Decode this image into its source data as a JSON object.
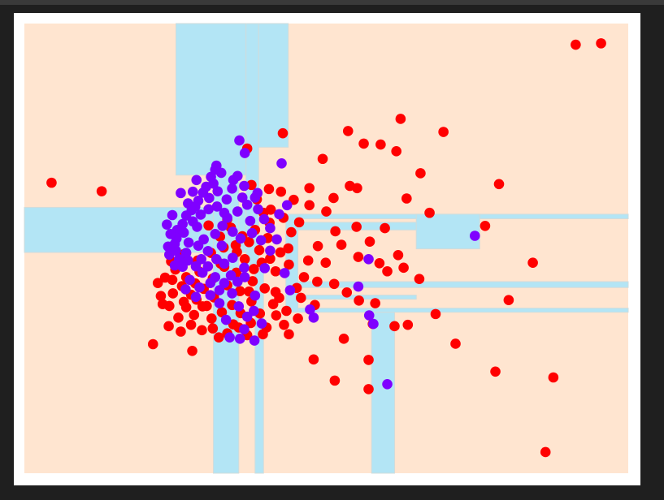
{
  "chart_data": {
    "type": "scatter",
    "title": "",
    "xlabel": "",
    "ylabel": "",
    "axes_visible": false,
    "xlim": [
      0,
      100
    ],
    "ylim": [
      0,
      100
    ],
    "grid": false,
    "legend": "none",
    "decision_regions": {
      "background_class_color": "#ffe5d0",
      "other_class_color": "#b3e5f5",
      "boundary_color": "#cfdcdc",
      "regions": [
        {
          "x": [
            25.1,
            36.7
          ],
          "y": [
            66.3,
            100
          ]
        },
        {
          "x": [
            0,
            36.7
          ],
          "y": [
            49.1,
            59.1
          ]
        },
        {
          "x": [
            31.3,
            35.5
          ],
          "y": [
            0,
            66.3
          ]
        },
        {
          "x": [
            36.7,
            38.8
          ],
          "y": [
            45.0,
            100
          ]
        },
        {
          "x": [
            38.8,
            43.7
          ],
          "y": [
            72.5,
            100
          ]
        },
        {
          "x": [
            45.3,
            100
          ],
          "y": [
            56.6,
            57.6
          ]
        },
        {
          "x": [
            45.3,
            64.9
          ],
          "y": [
            54.1,
            55.8
          ]
        },
        {
          "x": [
            64.9,
            75.4
          ],
          "y": [
            49.9,
            57.6
          ]
        },
        {
          "x": [
            45.3,
            100
          ],
          "y": [
            41.3,
            42.6
          ]
        },
        {
          "x": [
            45.3,
            64.9
          ],
          "y": [
            38.7,
            39.6
          ]
        },
        {
          "x": [
            45.3,
            100
          ],
          "y": [
            35.8,
            36.7
          ]
        },
        {
          "x": [
            43.3,
            45.3
          ],
          "y": [
            35.8,
            57.6
          ]
        },
        {
          "x": [
            57.5,
            61.3
          ],
          "y": [
            0,
            35.8
          ]
        },
        {
          "x": [
            38.2,
            39.6
          ],
          "y": [
            0,
            45.0
          ]
        }
      ]
    },
    "series": [
      {
        "color": "#ff0000",
        "points": [
          [
            91.3,
            95.3
          ],
          [
            95.5,
            95.6
          ],
          [
            62.3,
            78.8
          ],
          [
            53.6,
            76.1
          ],
          [
            69.4,
            75.9
          ],
          [
            42.8,
            75.6
          ],
          [
            56.2,
            73.3
          ],
          [
            59.0,
            73.1
          ],
          [
            61.6,
            71.6
          ],
          [
            36.9,
            72.2
          ],
          [
            49.4,
            69.9
          ],
          [
            65.6,
            66.7
          ],
          [
            78.6,
            64.3
          ],
          [
            4.5,
            64.6
          ],
          [
            12.8,
            62.7
          ],
          [
            47.2,
            63.4
          ],
          [
            51.2,
            61.2
          ],
          [
            53.9,
            63.9
          ],
          [
            55.1,
            63.4
          ],
          [
            63.3,
            61.1
          ],
          [
            67.1,
            57.9
          ],
          [
            76.3,
            55.0
          ],
          [
            84.2,
            46.8
          ],
          [
            80.2,
            38.5
          ],
          [
            68.1,
            35.4
          ],
          [
            71.4,
            28.8
          ],
          [
            63.5,
            33.0
          ],
          [
            61.3,
            32.7
          ],
          [
            57.7,
            33.2
          ],
          [
            52.9,
            29.9
          ],
          [
            47.9,
            25.3
          ],
          [
            57.0,
            25.2
          ],
          [
            78.0,
            22.6
          ],
          [
            51.4,
            20.6
          ],
          [
            57.0,
            18.7
          ],
          [
            87.6,
            21.3
          ],
          [
            21.3,
            28.7
          ],
          [
            86.3,
            4.7
          ],
          [
            22.1,
            42.3
          ],
          [
            61.9,
            48.5
          ],
          [
            55.3,
            48.1
          ],
          [
            58.8,
            46.7
          ],
          [
            49.9,
            46.8
          ],
          [
            52.5,
            50.8
          ],
          [
            57.2,
            51.5
          ],
          [
            59.7,
            54.5
          ],
          [
            55.0,
            54.8
          ],
          [
            51.5,
            53.8
          ],
          [
            48.6,
            50.5
          ],
          [
            60.1,
            44.9
          ],
          [
            62.8,
            45.7
          ],
          [
            65.4,
            43.2
          ],
          [
            47.0,
            47.3
          ],
          [
            43.7,
            50.0
          ],
          [
            45.5,
            55.8
          ],
          [
            44.2,
            53.6
          ],
          [
            40.6,
            55.7
          ],
          [
            47.2,
            59.6
          ],
          [
            50.0,
            58.2
          ],
          [
            44.6,
            60.8
          ],
          [
            42.5,
            62.6
          ],
          [
            40.8,
            58.6
          ],
          [
            42.9,
            56.8
          ],
          [
            39.6,
            57.9
          ],
          [
            38.5,
            60.9
          ],
          [
            40.5,
            63.2
          ],
          [
            37.6,
            64.1
          ],
          [
            39.3,
            46.8
          ],
          [
            41.6,
            44.9
          ],
          [
            43.8,
            46.4
          ],
          [
            46.3,
            43.6
          ],
          [
            48.5,
            42.6
          ],
          [
            51.3,
            42.1
          ],
          [
            53.4,
            40.2
          ],
          [
            55.4,
            38.4
          ],
          [
            58.1,
            37.8
          ],
          [
            45.8,
            39.0
          ],
          [
            48.1,
            37.4
          ],
          [
            42.2,
            39.0
          ],
          [
            41.2,
            37.6
          ],
          [
            43.4,
            36.1
          ],
          [
            45.3,
            34.4
          ],
          [
            43.0,
            33.0
          ],
          [
            41.7,
            35.1
          ],
          [
            40.1,
            32.4
          ],
          [
            39.0,
            35.5
          ],
          [
            37.5,
            33.4
          ],
          [
            35.8,
            35.6
          ],
          [
            34.6,
            33.1
          ],
          [
            32.7,
            35.8
          ],
          [
            31.0,
            34.4
          ],
          [
            29.5,
            37.1
          ],
          [
            28.1,
            35.2
          ],
          [
            26.8,
            36.9
          ],
          [
            25.5,
            34.6
          ],
          [
            24.0,
            37.2
          ],
          [
            22.6,
            39.4
          ],
          [
            24.6,
            40.0
          ],
          [
            26.1,
            41.6
          ],
          [
            27.6,
            39.7
          ],
          [
            29.7,
            41.0
          ],
          [
            31.4,
            39.1
          ],
          [
            33.6,
            41.8
          ],
          [
            35.7,
            40.5
          ],
          [
            37.8,
            42.7
          ],
          [
            39.8,
            41.1
          ],
          [
            35.1,
            44.6
          ],
          [
            33.1,
            45.9
          ],
          [
            31.2,
            43.3
          ],
          [
            29.0,
            44.8
          ],
          [
            26.8,
            43.6
          ],
          [
            25.0,
            45.3
          ],
          [
            23.3,
            43.5
          ],
          [
            24.3,
            47.1
          ],
          [
            26.4,
            48.7
          ],
          [
            28.7,
            47.3
          ],
          [
            30.9,
            49.0
          ],
          [
            33.0,
            50.2
          ],
          [
            35.2,
            49.2
          ],
          [
            37.2,
            51.4
          ],
          [
            38.9,
            49.6
          ],
          [
            40.3,
            52.3
          ],
          [
            38.2,
            54.1
          ],
          [
            36.1,
            52.7
          ],
          [
            34.2,
            54.6
          ],
          [
            32.4,
            52.6
          ],
          [
            30.5,
            55.1
          ],
          [
            36.5,
            47.6
          ],
          [
            38.0,
            45.4
          ],
          [
            40.7,
            47.7
          ],
          [
            42.4,
            49.1
          ],
          [
            23.9,
            32.7
          ],
          [
            25.9,
            31.5
          ],
          [
            27.6,
            33.0
          ],
          [
            29.4,
            31.8
          ],
          [
            31.2,
            32.2
          ],
          [
            33.6,
            31.1
          ],
          [
            35.5,
            32.4
          ],
          [
            27.8,
            27.2
          ],
          [
            22.9,
            37.6
          ],
          [
            26.4,
            38.1
          ],
          [
            28.5,
            38.6
          ],
          [
            30.2,
            37.2
          ],
          [
            34.4,
            37.4
          ],
          [
            37.6,
            38.2
          ],
          [
            32.2,
            30.2
          ],
          [
            36.9,
            30.7
          ],
          [
            39.5,
            30.9
          ],
          [
            43.8,
            30.9
          ],
          [
            41.6,
            40.3
          ],
          [
            45.1,
            41.2
          ],
          [
            37.2,
            40.4
          ],
          [
            24.5,
            43.0
          ],
          [
            28.3,
            42.2
          ],
          [
            32.5,
            46.6
          ],
          [
            35.0,
            50.7
          ],
          [
            33.6,
            56.5
          ]
        ]
      },
      {
        "color": "#7f00ff",
        "points": [
          [
            36.5,
            71.2
          ],
          [
            35.6,
            74.0
          ],
          [
            42.6,
            68.9
          ],
          [
            31.8,
            68.4
          ],
          [
            32.6,
            66.8
          ],
          [
            30.9,
            65.9
          ],
          [
            31.6,
            67.5
          ],
          [
            28.5,
            65.2
          ],
          [
            31.3,
            64.4
          ],
          [
            30.1,
            63.7
          ],
          [
            29.6,
            62.4
          ],
          [
            27.9,
            62.6
          ],
          [
            28.8,
            60.6
          ],
          [
            30.6,
            61.2
          ],
          [
            31.9,
            59.3
          ],
          [
            30.5,
            58.7
          ],
          [
            29.2,
            57.5
          ],
          [
            27.7,
            58.5
          ],
          [
            26.8,
            57.3
          ],
          [
            27.9,
            56.0
          ],
          [
            26.2,
            55.4
          ],
          [
            25.3,
            54.1
          ],
          [
            26.4,
            53.5
          ],
          [
            25.2,
            52.2
          ],
          [
            24.2,
            53.2
          ],
          [
            24.9,
            51.0
          ],
          [
            23.8,
            50.4
          ],
          [
            25.1,
            49.5
          ],
          [
            24.0,
            48.6
          ],
          [
            25.6,
            47.6
          ],
          [
            24.9,
            46.2
          ],
          [
            26.2,
            45.9
          ],
          [
            27.1,
            47.3
          ],
          [
            28.4,
            46.0
          ],
          [
            29.3,
            47.6
          ],
          [
            30.4,
            46.0
          ],
          [
            31.8,
            47.6
          ],
          [
            33.1,
            46.6
          ],
          [
            34.5,
            47.9
          ],
          [
            29.5,
            44.6
          ],
          [
            31.6,
            43.6
          ],
          [
            33.1,
            42.3
          ],
          [
            34.2,
            44.0
          ],
          [
            35.3,
            42.6
          ],
          [
            36.5,
            43.6
          ],
          [
            32.3,
            40.7
          ],
          [
            34.4,
            40.0
          ],
          [
            30.8,
            39.6
          ],
          [
            29.0,
            41.3
          ],
          [
            27.4,
            43.0
          ],
          [
            26.7,
            40.9
          ],
          [
            32.3,
            37.8
          ],
          [
            35.5,
            37.1
          ],
          [
            38.2,
            39.5
          ],
          [
            38.0,
            36.1
          ],
          [
            36.9,
            34.8
          ],
          [
            39.3,
            33.3
          ],
          [
            36.4,
            32.0
          ],
          [
            35.7,
            29.9
          ],
          [
            38.1,
            29.5
          ],
          [
            34.0,
            30.2
          ],
          [
            35.8,
            52.2
          ],
          [
            37.7,
            53.4
          ],
          [
            39.2,
            51.8
          ],
          [
            40.7,
            54.5
          ],
          [
            39.7,
            56.5
          ],
          [
            38.7,
            58.7
          ],
          [
            42.2,
            57.6
          ],
          [
            43.5,
            59.6
          ],
          [
            41.8,
            52.0
          ],
          [
            40.7,
            49.5
          ],
          [
            33.6,
            56.8
          ],
          [
            35.3,
            58.2
          ],
          [
            36.9,
            59.7
          ],
          [
            38.2,
            61.3
          ],
          [
            36.1,
            61.3
          ],
          [
            33.5,
            60.9
          ],
          [
            32.0,
            62.7
          ],
          [
            34.4,
            63.3
          ],
          [
            34.6,
            65.2
          ],
          [
            36.4,
            63.9
          ],
          [
            29.7,
            52.0
          ],
          [
            31.6,
            53.2
          ],
          [
            28.8,
            50.6
          ],
          [
            27.2,
            51.3
          ],
          [
            30.4,
            49.4
          ],
          [
            32.7,
            50.6
          ],
          [
            27.1,
            60.0
          ],
          [
            25.9,
            62.3
          ],
          [
            28.3,
            59.3
          ],
          [
            32.8,
            55.0
          ],
          [
            34.5,
            53.7
          ],
          [
            43.1,
            44.5
          ],
          [
            39.8,
            45.6
          ],
          [
            57.0,
            47.6
          ],
          [
            55.3,
            41.5
          ],
          [
            44.0,
            40.7
          ],
          [
            47.3,
            36.4
          ],
          [
            47.9,
            34.6
          ],
          [
            57.1,
            35.1
          ],
          [
            57.8,
            33.2
          ],
          [
            60.1,
            19.8
          ],
          [
            74.6,
            52.8
          ],
          [
            23.6,
            55.3
          ],
          [
            24.5,
            57.4
          ],
          [
            26.8,
            49.0
          ],
          [
            28.6,
            54.8
          ],
          [
            33.1,
            57.9
          ],
          [
            37.4,
            56.1
          ],
          [
            38.6,
            62.3
          ],
          [
            35.3,
            66.1
          ],
          [
            30.8,
            42.3
          ],
          [
            28.4,
            39.2
          ],
          [
            33.4,
            34.1
          ],
          [
            36.4,
            45.7
          ]
        ]
      }
    ]
  }
}
